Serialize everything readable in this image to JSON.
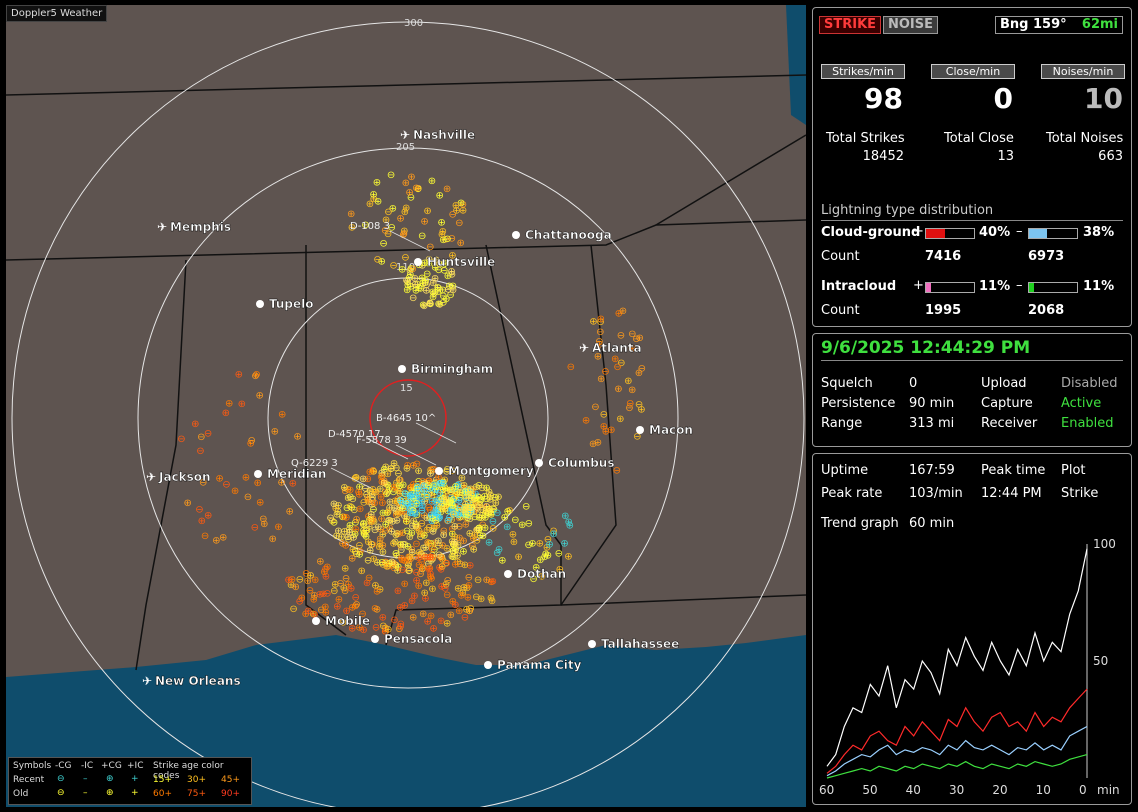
{
  "app": {
    "brand": "Doppler5 Weather"
  },
  "map": {
    "range_labels": [
      "300",
      "205",
      "110",
      "15"
    ],
    "cities": [
      {
        "name": "Nashville",
        "airport": true
      },
      {
        "name": "Memphis",
        "airport": true
      },
      {
        "name": "Chattanooga",
        "airport": false
      },
      {
        "name": "Huntsville",
        "airport": false
      },
      {
        "name": "Tupelo",
        "airport": false
      },
      {
        "name": "Atlanta",
        "airport": true
      },
      {
        "name": "Birmingham",
        "airport": false
      },
      {
        "name": "Macon",
        "airport": false
      },
      {
        "name": "Jackson",
        "airport": true
      },
      {
        "name": "Meridian",
        "airport": false
      },
      {
        "name": "Montgomery",
        "airport": false
      },
      {
        "name": "Columbus",
        "airport": false
      },
      {
        "name": "Dothan",
        "airport": false
      },
      {
        "name": "Mobile",
        "airport": false
      },
      {
        "name": "Pensacola",
        "airport": false
      },
      {
        "name": "Tallahassee",
        "airport": false
      },
      {
        "name": "Panama City",
        "airport": false
      },
      {
        "name": "New Orleans",
        "airport": true
      }
    ],
    "cell_tags": [
      "D-108 3",
      "B-4645 10^",
      "D-4570 17",
      "F-5878 39",
      "Q-6229 3"
    ]
  },
  "legend": {
    "symbols_label": "Symbols",
    "headers": [
      "-CG",
      "-IC",
      "+CG",
      "+IC"
    ],
    "age_title": "Strike age color codes",
    "recent_label": "Recent",
    "old_label": "Old",
    "ages_recent": [
      "15+",
      "30+",
      "45+"
    ],
    "ages_old": [
      "60+",
      "75+",
      "90+"
    ],
    "age_colors": [
      "#ffff33",
      "#ffc020",
      "#ff9a1a",
      "#ff7a00",
      "#ff5a10",
      "#ff3a20"
    ]
  },
  "top": {
    "strike_btn": "STRIKE",
    "noise_btn": "NOISE",
    "bearing": "Bng 159°",
    "bearing_dist": "62mi",
    "strikes_min_label": "Strikes/min",
    "close_min_label": "Close/min",
    "noises_min_label": "Noises/min",
    "strikes_min": "98",
    "close_min": "0",
    "noises_min": "10",
    "total_strikes_label": "Total Strikes",
    "total_close_label": "Total Close",
    "total_noises_label": "Total Noises",
    "total_strikes": "18452",
    "total_close": "13",
    "total_noises": "663",
    "dist_title": "Lightning type distribution",
    "cg_label": "Cloud-ground",
    "cg_pos_pct": "40%",
    "cg_neg_pct": "38%",
    "cg_pos_frac": 0.4,
    "cg_neg_frac": 0.38,
    "count_label": "Count",
    "cg_pos_count": "7416",
    "cg_neg_count": "6973",
    "ic_label": "Intracloud",
    "ic_pos_pct": "11%",
    "ic_neg_pct": "11%",
    "ic_pos_frac": 0.11,
    "ic_neg_frac": 0.11,
    "ic_pos_count": "1995",
    "ic_neg_count": "2068",
    "plus": "+",
    "minus": "–"
  },
  "status": {
    "datetime": "9/6/2025 12:44:29 PM",
    "squelch_label": "Squelch",
    "squelch": "0",
    "persistence_label": "Persistence",
    "persistence": "90 min",
    "range_label": "Range",
    "range": "313 mi",
    "upload_label": "Upload",
    "upload": "Disabled",
    "capture_label": "Capture",
    "capture": "Active",
    "receiver_label": "Receiver",
    "receiver": "Enabled"
  },
  "trend": {
    "uptime_label": "Uptime",
    "uptime": "167:59",
    "peak_time_label": "Peak time",
    "peak_time": "12:44 PM",
    "plot_label": "Plot",
    "plot": "Strike",
    "peak_rate_label": "Peak rate",
    "peak_rate": "103/min",
    "trend_graph_label": "Trend graph",
    "trend_graph": "60 min",
    "y_labels": [
      "100",
      "50"
    ],
    "x_labels": [
      "60",
      "50",
      "40",
      "30",
      "20",
      "10",
      "0"
    ],
    "x_unit": "min"
  },
  "chart_data": {
    "type": "line",
    "x": [
      60,
      58,
      56,
      54,
      52,
      50,
      48,
      46,
      44,
      42,
      40,
      38,
      36,
      34,
      32,
      30,
      28,
      26,
      24,
      22,
      20,
      18,
      16,
      14,
      12,
      10,
      8,
      6,
      4,
      2,
      0
    ],
    "ylim": [
      0,
      100
    ],
    "series": [
      {
        "color": "#ffffff",
        "values": [
          5,
          10,
          22,
          30,
          28,
          40,
          35,
          48,
          30,
          42,
          38,
          50,
          45,
          36,
          55,
          48,
          60,
          52,
          46,
          58,
          50,
          44,
          55,
          48,
          62,
          50,
          58,
          54,
          70,
          80,
          98
        ]
      },
      {
        "color": "#ff2a2a",
        "values": [
          2,
          5,
          10,
          14,
          12,
          18,
          20,
          16,
          14,
          22,
          18,
          24,
          20,
          16,
          25,
          22,
          30,
          24,
          20,
          26,
          28,
          22,
          24,
          20,
          28,
          22,
          26,
          24,
          30,
          34,
          38
        ]
      },
      {
        "color": "#9ad0ff",
        "values": [
          1,
          3,
          6,
          8,
          10,
          9,
          12,
          14,
          10,
          12,
          11,
          13,
          12,
          10,
          14,
          12,
          16,
          13,
          12,
          14,
          12,
          10,
          13,
          12,
          15,
          12,
          14,
          12,
          18,
          20,
          22
        ]
      },
      {
        "color": "#3fe03f",
        "values": [
          0,
          1,
          2,
          3,
          4,
          3,
          5,
          4,
          3,
          5,
          4,
          6,
          5,
          4,
          6,
          5,
          7,
          5,
          4,
          6,
          5,
          4,
          6,
          5,
          7,
          6,
          5,
          6,
          8,
          9,
          10
        ]
      }
    ]
  }
}
